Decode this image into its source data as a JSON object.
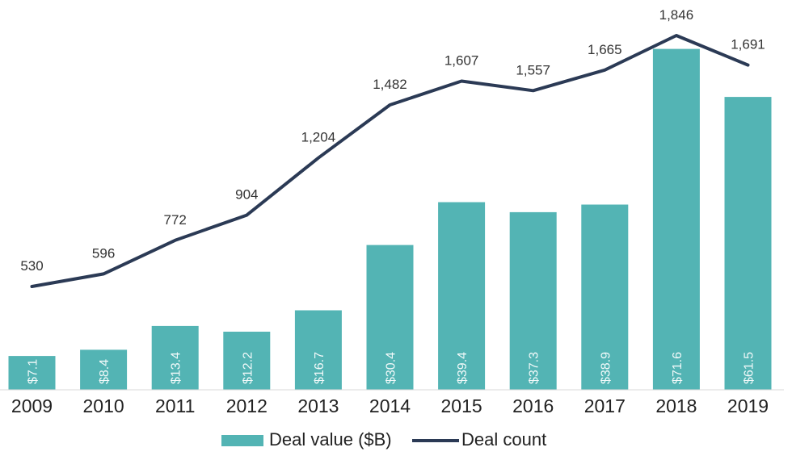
{
  "chart_data": {
    "type": "bar",
    "title": "",
    "xlabel": "",
    "ylabel": "",
    "categories": [
      "2009",
      "2010",
      "2011",
      "2012",
      "2013",
      "2014",
      "2015",
      "2016",
      "2017",
      "2018",
      "2019"
    ],
    "series": [
      {
        "name": "Deal value ($B)",
        "type": "bar",
        "axis": "left",
        "values": [
          7.1,
          8.4,
          13.4,
          12.2,
          16.7,
          30.4,
          39.4,
          37.3,
          38.9,
          71.6,
          61.5
        ],
        "labels": [
          "$7.1",
          "$8.4",
          "$13.4",
          "$12.2",
          "$16.7",
          "$30.4",
          "$39.4",
          "$37.3",
          "$38.9",
          "$71.6",
          "$61.5"
        ],
        "color": "#53b4b4"
      },
      {
        "name": "Deal count",
        "type": "line",
        "axis": "right",
        "values": [
          530,
          596,
          772,
          904,
          1204,
          1482,
          1607,
          1557,
          1665,
          1846,
          1691
        ],
        "labels": [
          "530",
          "596",
          "772",
          "904",
          "1,204",
          "1,482",
          "1,607",
          "1,557",
          "1,665",
          "1,846",
          "1,691"
        ],
        "color": "#2b3a55"
      }
    ],
    "grid": false,
    "legend_position": "bottom",
    "ylim_left": [
      0,
      80
    ],
    "ylim_right": [
      0,
      2000
    ]
  },
  "legend": {
    "bar_label": "Deal value ($B)",
    "line_label": "Deal count"
  }
}
